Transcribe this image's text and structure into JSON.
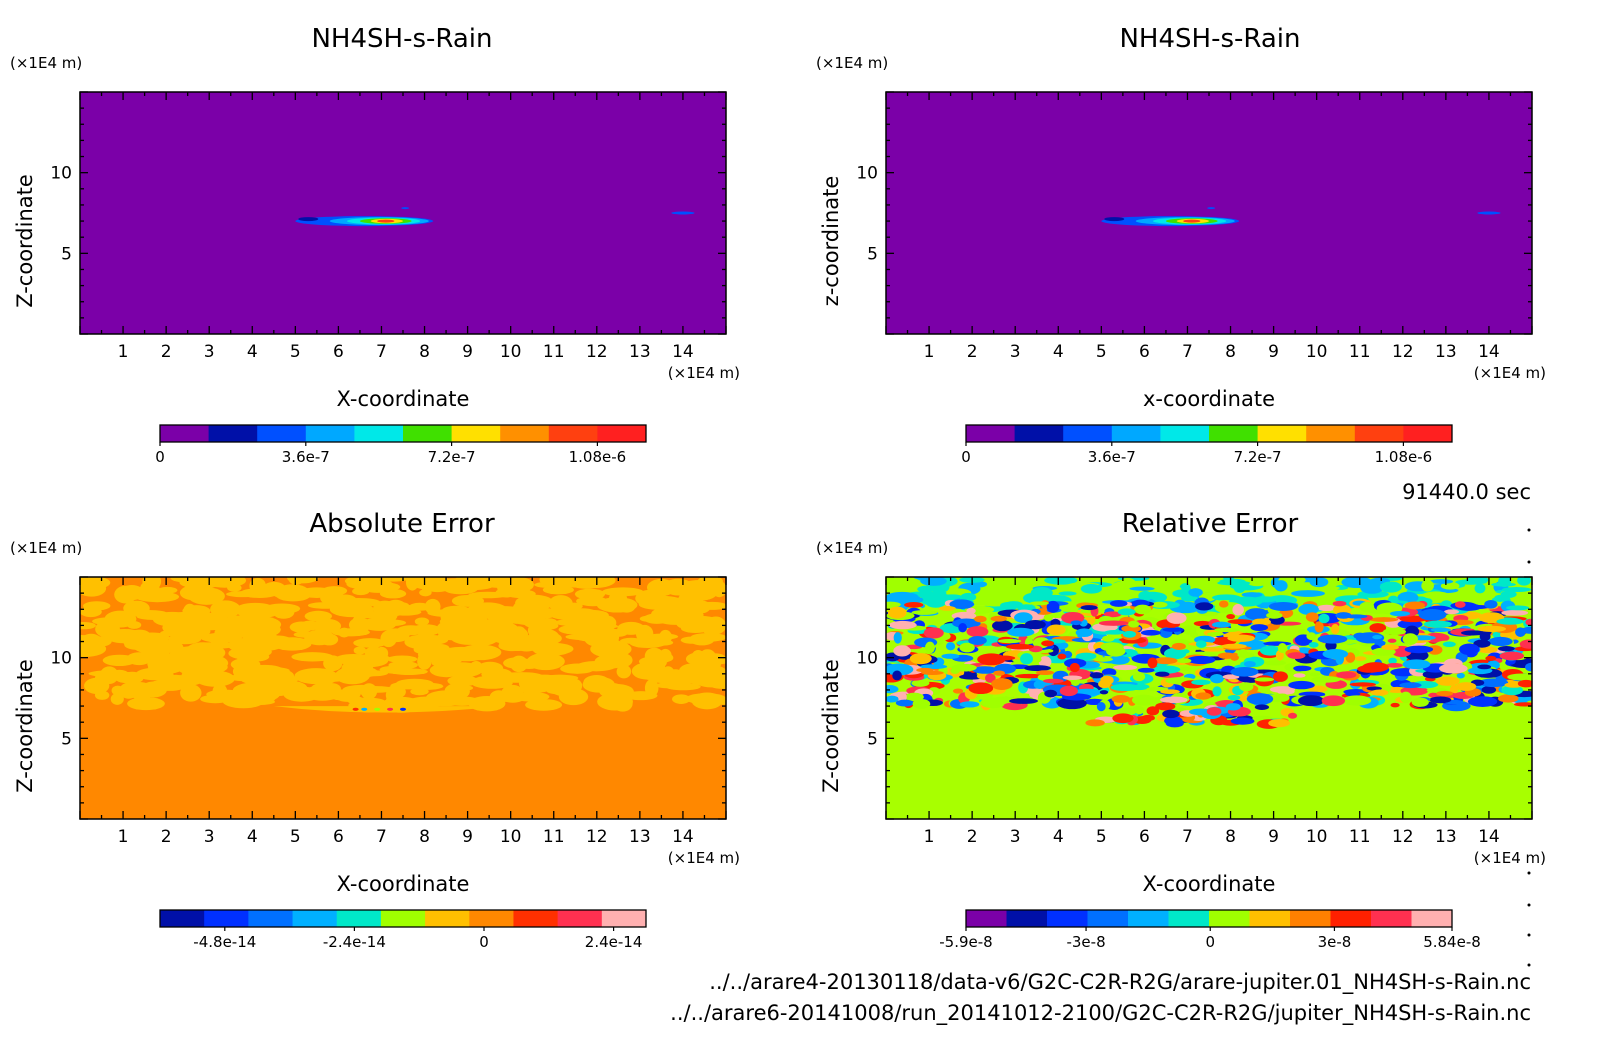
{
  "time_label": "91440.0 sec",
  "files": [
    "../../arare4-20130118/data-v6/G2C-C2R-R2G/arare-jupiter.01_NH4SH-s-Rain.nc",
    "../../arare6-20141008/run_20141012-2100/G2C-C2R-R2G/jupiter_NH4SH-s-Rain.nc"
  ],
  "chart_data": [
    {
      "type": "heatmap",
      "title": "NH4SH-s-Rain",
      "xlabel": "X-coordinate",
      "ylabel": "Z-coordinate",
      "x_unit": "(×1E4 m)",
      "y_unit": "(×1E4 m)",
      "xlim": [
        0,
        15
      ],
      "ylim": [
        0,
        15
      ],
      "x_ticks": [
        1,
        2,
        3,
        4,
        5,
        6,
        7,
        8,
        9,
        10,
        11,
        12,
        13,
        14
      ],
      "y_ticks": [
        5,
        10
      ],
      "background": "#7b00a8",
      "colorbar": {
        "colors": [
          "#7b00a8",
          "#0010a8",
          "#0050ff",
          "#00a8ff",
          "#00e8e8",
          "#40e000",
          "#ffe000",
          "#ff9000",
          "#ff4010",
          "#ff2020"
        ],
        "tick_labels": [
          "0",
          "3.6e-7",
          "7.2e-7",
          "1.08e-6"
        ],
        "tick_values": [
          0,
          3.6e-07,
          7.2e-07,
          1.08e-06
        ],
        "range": [
          0,
          1.2e-06
        ]
      },
      "features": [
        {
          "x_range": [
            5.0,
            8.2
          ],
          "z": 7.0,
          "peak": 1.08e-06,
          "peak_x": 7.0
        },
        {
          "x_range": [
            13.8,
            14.2
          ],
          "z": 7.5,
          "peak": 3.6e-07,
          "peak_x": 14.0
        }
      ]
    },
    {
      "type": "heatmap",
      "title": "NH4SH-s-Rain",
      "xlabel": "x-coordinate",
      "ylabel": "z-coordinate",
      "x_unit": "(×1E4 m)",
      "y_unit": "(×1E4 m)",
      "xlim": [
        0,
        15
      ],
      "ylim": [
        0,
        15
      ],
      "x_ticks": [
        1,
        2,
        3,
        4,
        5,
        6,
        7,
        8,
        9,
        10,
        11,
        12,
        13,
        14
      ],
      "y_ticks": [
        5,
        10
      ],
      "background": "#7b00a8",
      "colorbar": {
        "colors": [
          "#7b00a8",
          "#0010a8",
          "#0050ff",
          "#00a8ff",
          "#00e8e8",
          "#40e000",
          "#ffe000",
          "#ff9000",
          "#ff4010",
          "#ff2020"
        ],
        "tick_labels": [
          "0",
          "3.6e-7",
          "7.2e-7",
          "1.08e-6"
        ],
        "tick_values": [
          0,
          3.6e-07,
          7.2e-07,
          1.08e-06
        ],
        "range": [
          0,
          1.2e-06
        ]
      },
      "features": [
        {
          "x_range": [
            5.0,
            8.2
          ],
          "z": 7.0,
          "peak": 1.08e-06,
          "peak_x": 7.0
        },
        {
          "x_range": [
            13.8,
            14.2
          ],
          "z": 7.5,
          "peak": 3.6e-07,
          "peak_x": 14.0
        }
      ]
    },
    {
      "type": "heatmap",
      "title": "Absolute Error",
      "xlabel": "X-coordinate",
      "ylabel": "Z-coordinate",
      "x_unit": "(×1E4 m)",
      "y_unit": "(×1E4 m)",
      "xlim": [
        0,
        15
      ],
      "ylim": [
        0,
        15
      ],
      "x_ticks": [
        1,
        2,
        3,
        4,
        5,
        6,
        7,
        8,
        9,
        10,
        11,
        12,
        13,
        14
      ],
      "y_ticks": [
        5,
        10
      ],
      "background": "#ff8800",
      "noise_color": "#ffc000",
      "noise_z_bottom": 7.0,
      "colorbar": {
        "colors": [
          "#0010a8",
          "#0030ff",
          "#0070ff",
          "#00b0ff",
          "#00e8c8",
          "#a0ff00",
          "#ffc000",
          "#ff8800",
          "#ff3000",
          "#ff3050",
          "#ffb0b0"
        ],
        "tick_labels": [
          "-4.8e-14",
          "-2.4e-14",
          "0",
          "2.4e-14"
        ],
        "tick_values": [
          -4.8e-14,
          -2.4e-14,
          0,
          2.4e-14
        ],
        "range": [
          -6e-14,
          3e-14
        ]
      }
    },
    {
      "type": "heatmap",
      "title": "Relative Error",
      "xlabel": "X-coordinate",
      "ylabel": "Z-coordinate",
      "x_unit": "(×1E4 m)",
      "y_unit": "(×1E4 m)",
      "xlim": [
        0,
        15
      ],
      "ylim": [
        0,
        15
      ],
      "x_ticks": [
        1,
        2,
        3,
        4,
        5,
        6,
        7,
        8,
        9,
        10,
        11,
        12,
        13,
        14
      ],
      "y_ticks": [
        5,
        10
      ],
      "background": "#a8ff00",
      "noise_z_bottom": 7.0,
      "colorbar": {
        "colors": [
          "#7b00a8",
          "#0010a8",
          "#0030ff",
          "#0070ff",
          "#00b0ff",
          "#00e8c8",
          "#a0ff00",
          "#ffc000",
          "#ff8000",
          "#ff2000",
          "#ff3050",
          "#ffb0b0"
        ],
        "tick_labels": [
          "-5.9e-8",
          "-3e-8",
          "0",
          "3e-8",
          "5.84e-8"
        ],
        "tick_values": [
          -5.9e-08,
          -3e-08,
          0,
          3e-08,
          5.84e-08
        ],
        "range": [
          -5.9e-08,
          5.84e-08
        ]
      }
    }
  ]
}
